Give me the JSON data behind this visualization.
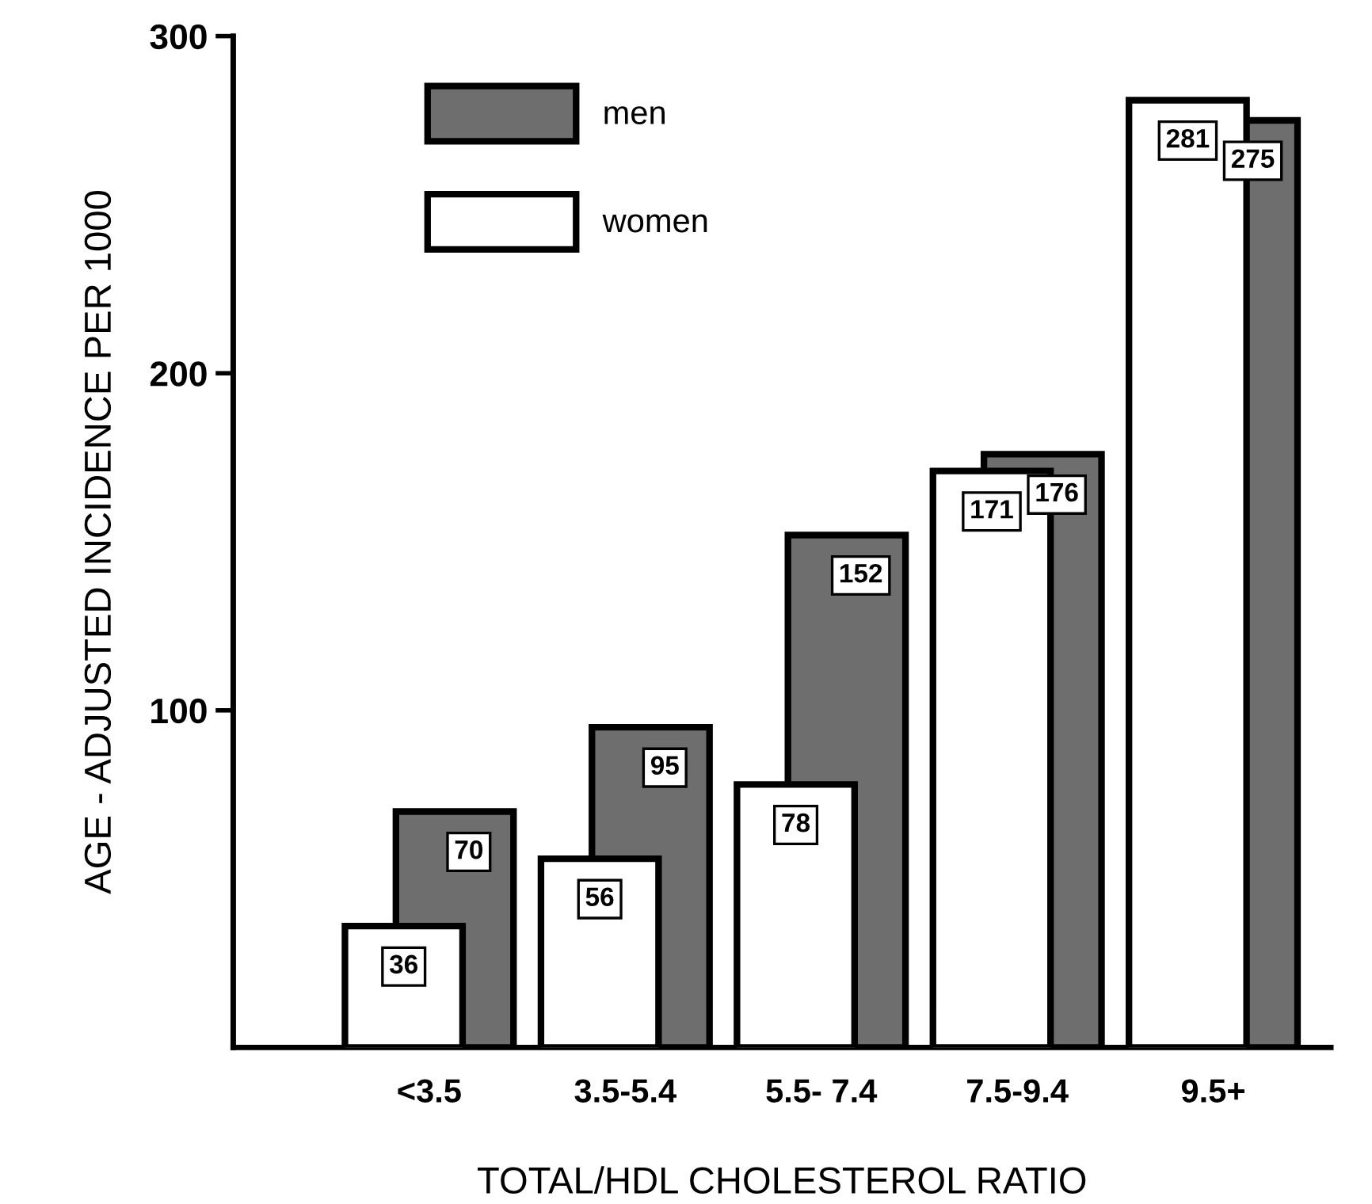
{
  "chart_data": {
    "type": "bar",
    "xlabel": "TOTAL/HDL CHOLESTEROL RATIO",
    "ylabel": "AGE - ADJUSTED INCIDENCE PER 1000",
    "categories": [
      "<3.5",
      "3.5-5.4",
      "5.5- 7.4",
      "7.5-9.4",
      "9.5+"
    ],
    "series": [
      {
        "name": "men",
        "color": "#6e6e6e",
        "values": [
          70,
          95,
          152,
          176,
          275
        ]
      },
      {
        "name": "women",
        "color": "#ffffff",
        "values": [
          36,
          56,
          78,
          171,
          281
        ]
      }
    ],
    "ylim": [
      0,
      300
    ],
    "yticks": [
      100,
      200,
      300
    ],
    "data_labels": true,
    "legend": "top left",
    "grid": false
  }
}
